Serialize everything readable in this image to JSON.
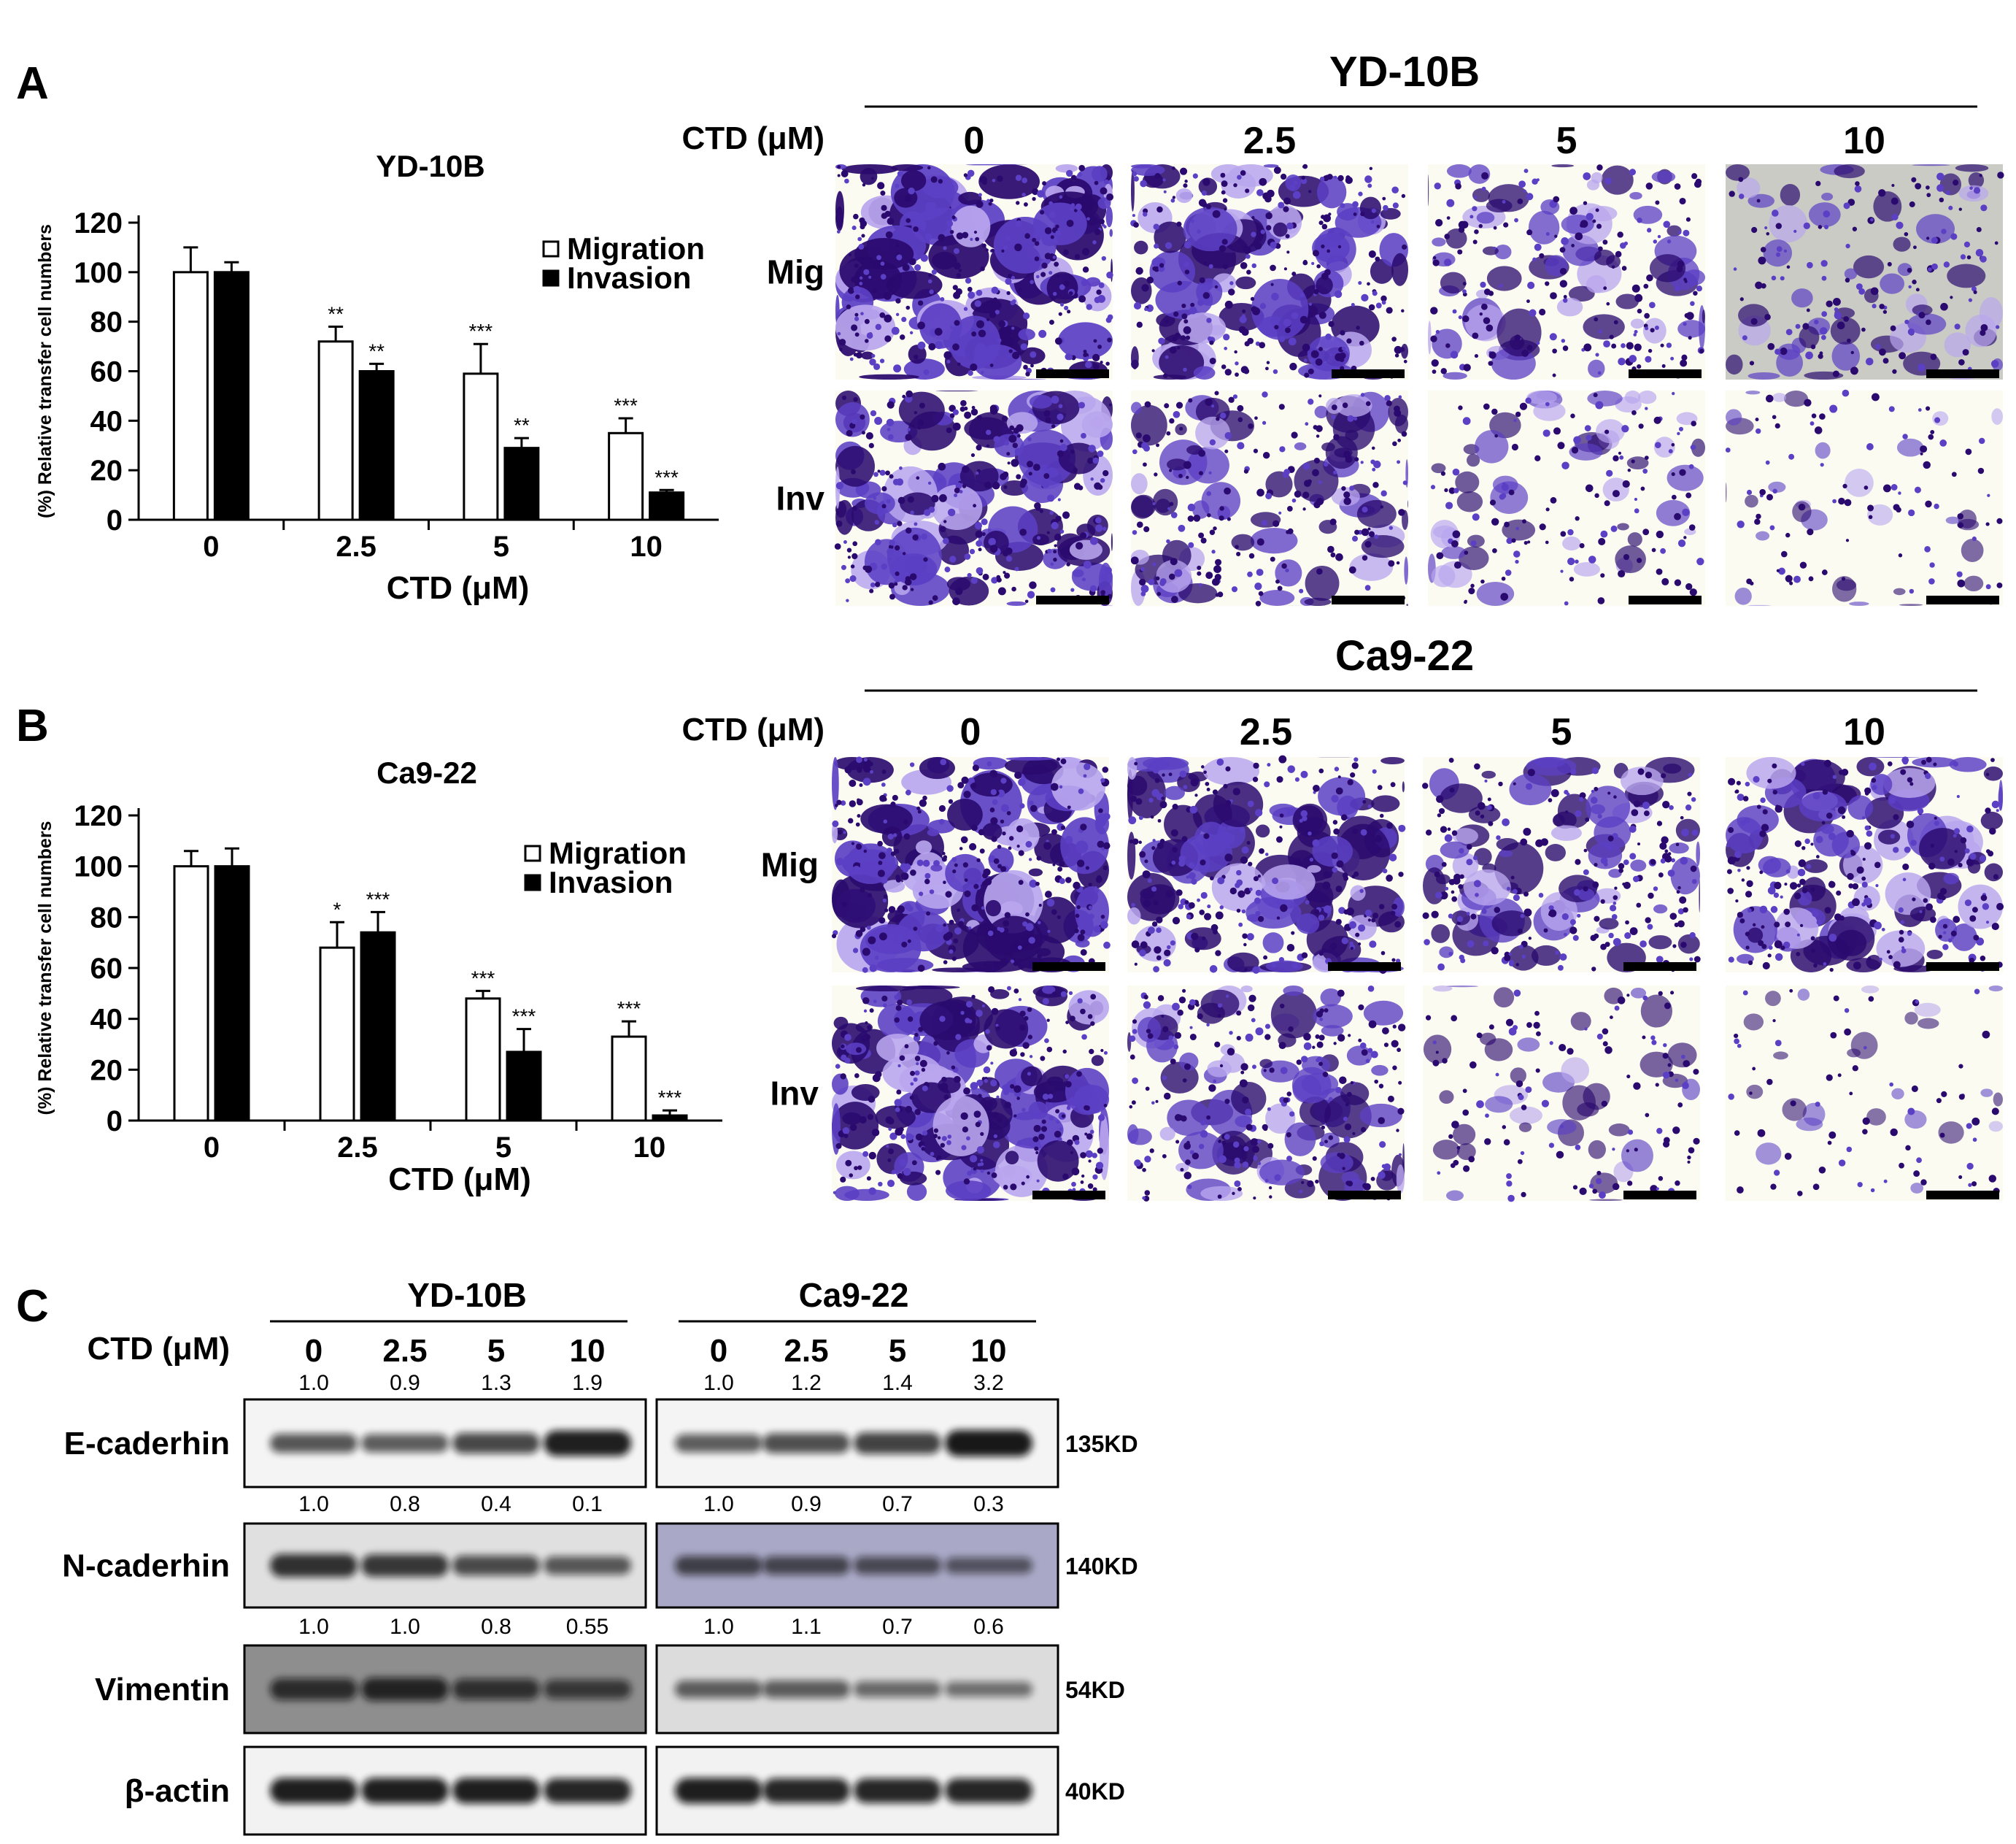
{
  "panel_labels": {
    "a": "A",
    "b": "B",
    "c": "C"
  },
  "colors": {
    "stain_dark": "#2a0a6e",
    "stain_mid": "#5b3fc4",
    "stain_light": "#b9a6ee",
    "background_bright": "#fbfbf2",
    "background_grey": "#c9cbc4",
    "n_cadherin_bg_ca922": "#a9a8c6",
    "blot_band": "#111111"
  },
  "chart_data": [
    {
      "type": "bar",
      "title": "YD-10B",
      "categories": [
        "0",
        "2.5",
        "5",
        "10"
      ],
      "series": [
        {
          "name": "Migration",
          "values": [
            100,
            72,
            59,
            35
          ],
          "errors": [
            10,
            6,
            12,
            6
          ],
          "annotations": [
            "",
            "**",
            "***",
            "***"
          ],
          "fill": "#ffffff"
        },
        {
          "name": "Invasion",
          "values": [
            100,
            60,
            29,
            11
          ],
          "errors": [
            4,
            3,
            4,
            1
          ],
          "annotations": [
            "",
            "**",
            "**",
            "***"
          ],
          "fill": "#000000"
        }
      ],
      "xlabel": "CTD (μM)",
      "ylabel": "(%) Relative transfer cell numbers",
      "ylim": [
        0,
        120
      ],
      "yticks": [
        "0",
        "20",
        "40",
        "60",
        "80",
        "100",
        "120"
      ],
      "legend": "top-right"
    },
    {
      "type": "bar",
      "title": "Ca9-22",
      "categories": [
        "0",
        "2.5",
        "5",
        "10"
      ],
      "series": [
        {
          "name": "Migration",
          "values": [
            100,
            68,
            48,
            33
          ],
          "errors": [
            6,
            10,
            3,
            6
          ],
          "annotations": [
            "",
            "*",
            "***",
            "***"
          ],
          "fill": "#ffffff"
        },
        {
          "name": "Invasion",
          "values": [
            100,
            74,
            27,
            2
          ],
          "errors": [
            7,
            8,
            9,
            2
          ],
          "annotations": [
            "",
            "***",
            "***",
            "***"
          ],
          "fill": "#000000"
        }
      ],
      "xlabel": "CTD (μM)",
      "ylabel": "(%) Relative transfer cell numbers",
      "ylim": [
        0,
        120
      ],
      "yticks": [
        "0",
        "20",
        "40",
        "60",
        "80",
        "100",
        "120"
      ],
      "legend": "top-right"
    }
  ],
  "micrographs": [
    {
      "cell_line": "YD-10B",
      "ctd_label": "CTD (μM)",
      "concentrations": [
        "0",
        "2.5",
        "5",
        "10"
      ],
      "rows": [
        {
          "label": "Mig",
          "density": [
            0.95,
            0.8,
            0.5,
            0.35
          ]
        },
        {
          "label": "Inv",
          "density": [
            0.8,
            0.55,
            0.3,
            0.12
          ]
        }
      ]
    },
    {
      "cell_line": "Ca9-22",
      "ctd_label": "CTD (μM)",
      "concentrations": [
        "0",
        "2.5",
        "5",
        "10"
      ],
      "rows": [
        {
          "label": "Mig",
          "density": [
            0.9,
            0.75,
            0.6,
            0.7
          ]
        },
        {
          "label": "Inv",
          "density": [
            0.85,
            0.6,
            0.2,
            0.04
          ]
        }
      ]
    }
  ],
  "western_blot": {
    "ctd_label": "CTD (μM)",
    "cell_lines": [
      "YD-10B",
      "Ca9-22"
    ],
    "concentrations": [
      "0",
      "2.5",
      "5",
      "10"
    ],
    "proteins": [
      {
        "name": "E-caderhin",
        "kd": "135KD",
        "values": [
          [
            "1.0",
            "0.9",
            "1.3",
            "1.9"
          ],
          [
            "1.0",
            "1.2",
            "1.4",
            "3.2"
          ]
        ],
        "intensity": [
          [
            0.55,
            0.5,
            0.65,
            0.95
          ],
          [
            0.5,
            0.6,
            0.7,
            1.0
          ]
        ]
      },
      {
        "name": "N-caderhin",
        "kd": "140KD",
        "values": [
          [
            "1.0",
            "0.8",
            "0.4",
            "0.1"
          ],
          [
            "1.0",
            "0.9",
            "0.7",
            "0.3"
          ]
        ],
        "intensity": [
          [
            0.8,
            0.75,
            0.6,
            0.5
          ],
          [
            0.55,
            0.5,
            0.45,
            0.35
          ]
        ]
      },
      {
        "name": "Vimentin",
        "kd": "54KD",
        "values": [
          [
            "1.0",
            "1.0",
            "0.8",
            "0.55"
          ],
          [
            "1.0",
            "1.1",
            "0.7",
            "0.6"
          ]
        ],
        "intensity": [
          [
            0.7,
            0.8,
            0.65,
            0.55
          ],
          [
            0.45,
            0.45,
            0.35,
            0.3
          ]
        ]
      },
      {
        "name": "β-actin",
        "kd": "40KD",
        "values": [
          [
            "",
            "",
            "",
            ""
          ],
          [
            "",
            "",
            "",
            ""
          ]
        ],
        "intensity": [
          [
            0.95,
            0.95,
            0.95,
            0.9
          ],
          [
            0.95,
            0.9,
            0.9,
            0.9
          ]
        ]
      }
    ]
  }
}
